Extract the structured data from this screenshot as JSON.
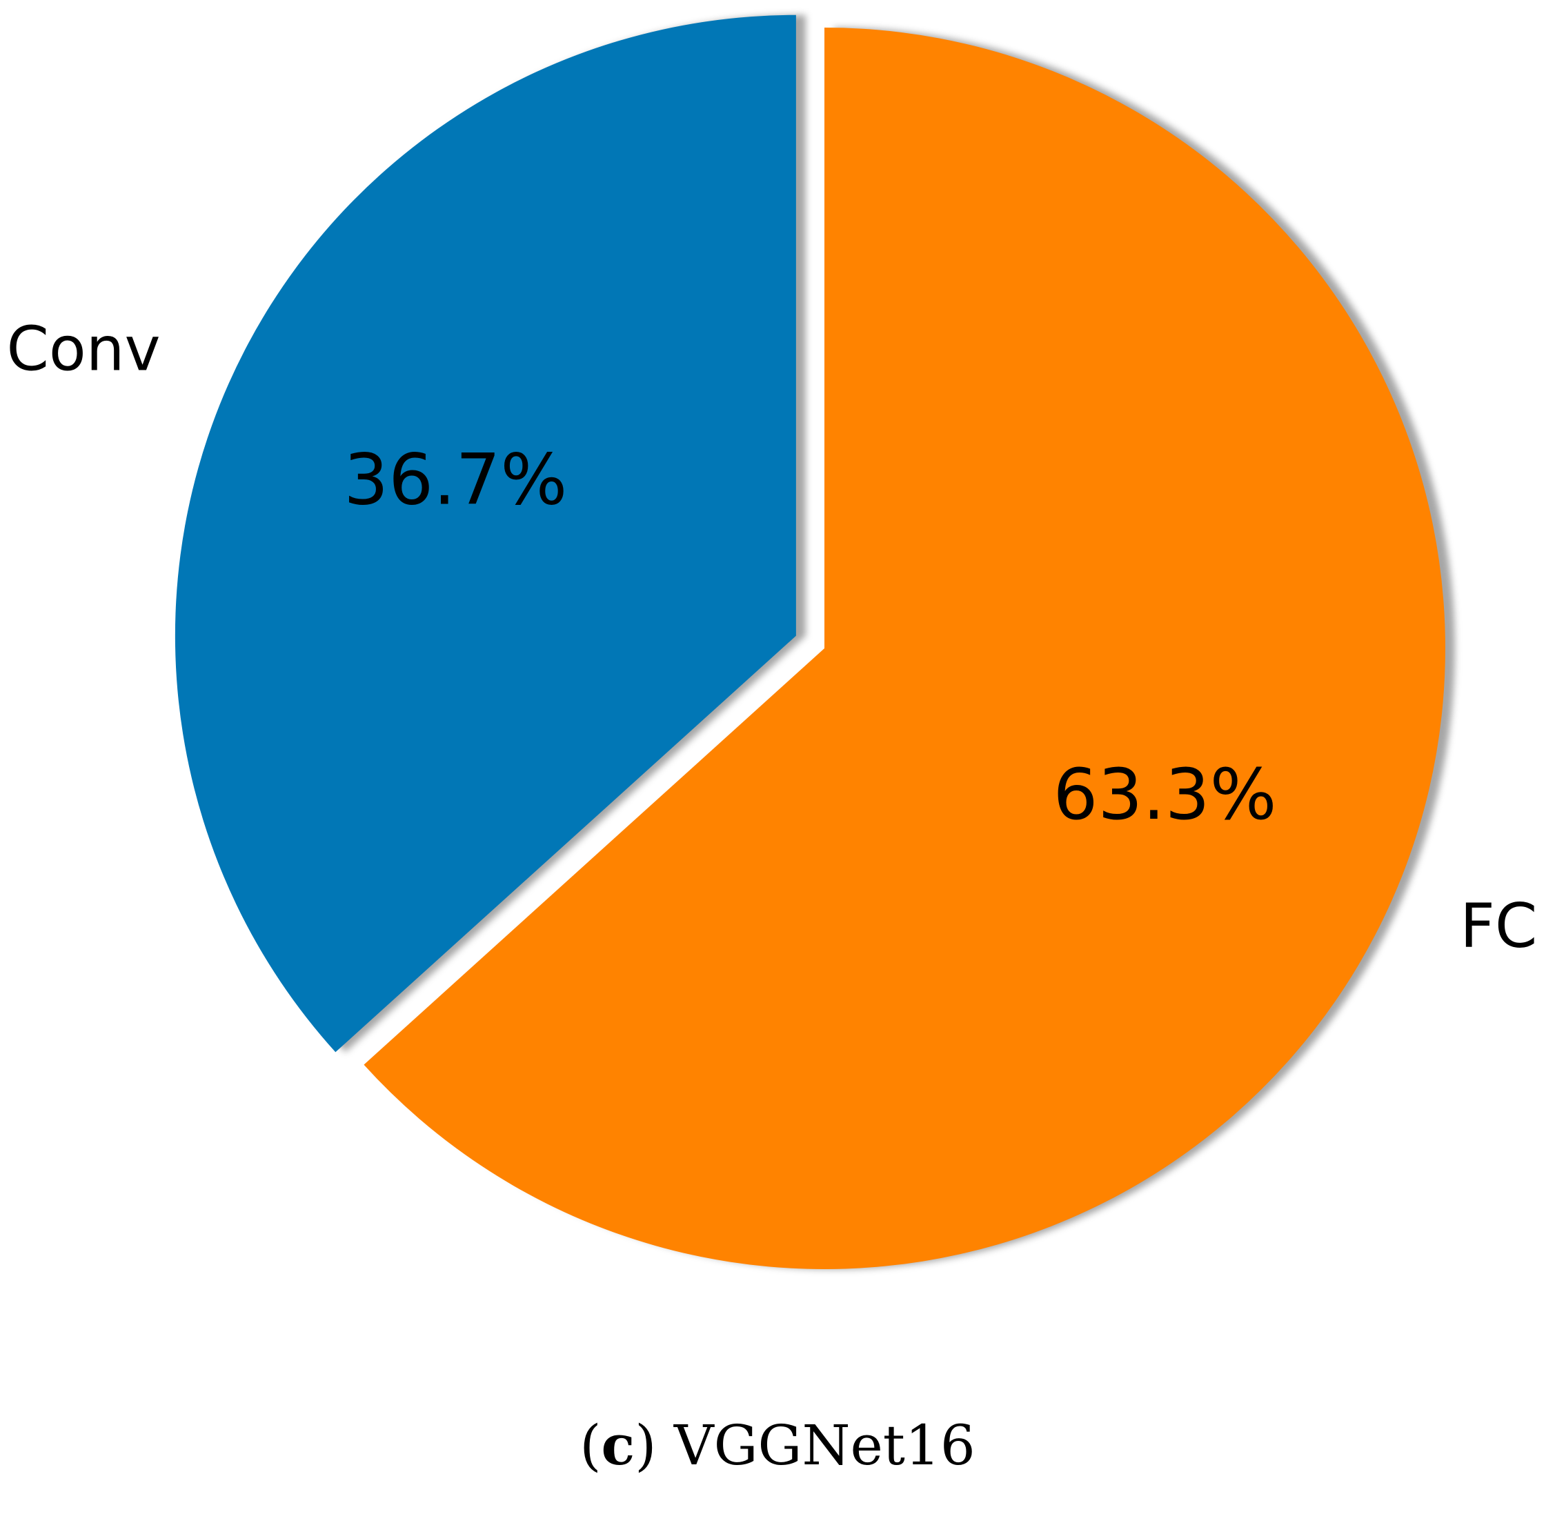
{
  "chart_data": {
    "type": "pie",
    "categories": [
      "Conv",
      "FC"
    ],
    "values": [
      36.7,
      63.3
    ],
    "value_labels": [
      "36.7%",
      "63.3%"
    ],
    "colors": [
      "#0177b6",
      "#ff8300"
    ],
    "exploded": [
      true,
      false
    ],
    "shadow": true,
    "start_angle_deg": 90,
    "direction": "counterclockwise",
    "title": "",
    "legend": "none"
  },
  "caption": {
    "open_paren": "(",
    "letter": "c",
    "close_paren": ")",
    "text": " VGGNet16"
  }
}
